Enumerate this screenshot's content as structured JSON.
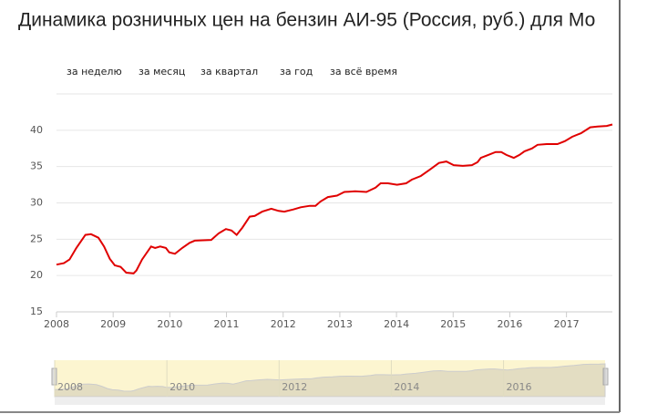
{
  "chart_data": {
    "type": "line",
    "title": "Динамика розничных цен на бензин АИ-95 (Россия, руб.) для Мо",
    "buttons": [
      "за неделю",
      "за месяц",
      "за квартал",
      "за год",
      "за всё время"
    ],
    "x": [
      2008.0,
      2008.13,
      2008.23,
      2008.35,
      2008.51,
      2008.61,
      2008.74,
      2008.84,
      2008.94,
      2009.03,
      2009.13,
      2009.23,
      2009.36,
      2009.41,
      2009.51,
      2009.67,
      2009.74,
      2009.83,
      2009.93,
      2009.99,
      2010.09,
      2010.22,
      2010.35,
      2010.44,
      2010.73,
      2010.86,
      2010.99,
      2011.09,
      2011.18,
      2011.28,
      2011.41,
      2011.5,
      2011.63,
      2011.79,
      2011.92,
      2012.02,
      2012.18,
      2012.31,
      2012.47,
      2012.57,
      2012.66,
      2012.79,
      2012.95,
      2013.08,
      2013.27,
      2013.47,
      2013.63,
      2013.72,
      2013.85,
      2014.01,
      2014.17,
      2014.27,
      2014.43,
      2014.59,
      2014.75,
      2014.88,
      2015.01,
      2015.17,
      2015.33,
      2015.43,
      2015.49,
      2015.62,
      2015.75,
      2015.85,
      2015.94,
      2016.07,
      2016.17,
      2016.26,
      2016.39,
      2016.49,
      2016.65,
      2016.84,
      2016.97,
      2017.1,
      2017.26,
      2017.42,
      2017.55,
      2017.71,
      2017.81
    ],
    "values": [
      21.5,
      21.7,
      22.2,
      23.8,
      25.6,
      25.7,
      25.2,
      24.0,
      22.3,
      21.4,
      21.2,
      20.4,
      20.3,
      20.7,
      22.2,
      24.0,
      23.8,
      24.0,
      23.8,
      23.2,
      23.0,
      23.8,
      24.5,
      24.8,
      24.9,
      25.8,
      26.4,
      26.2,
      25.6,
      26.6,
      28.1,
      28.2,
      28.8,
      29.2,
      28.9,
      28.8,
      29.1,
      29.4,
      29.6,
      29.6,
      30.2,
      30.8,
      31.0,
      31.5,
      31.6,
      31.5,
      32.1,
      32.7,
      32.7,
      32.5,
      32.7,
      33.2,
      33.7,
      34.6,
      35.5,
      35.7,
      35.2,
      35.1,
      35.2,
      35.6,
      36.2,
      36.6,
      37.0,
      37.0,
      36.6,
      36.2,
      36.6,
      37.1,
      37.5,
      38.0,
      38.1,
      38.1,
      38.5,
      39.1,
      39.6,
      40.4,
      40.5,
      40.6,
      40.8
    ],
    "color": "#e00000",
    "xlim": [
      2008,
      2017.81
    ],
    "xticks": [
      2008,
      2009,
      2010,
      2011,
      2012,
      2013,
      2014,
      2015,
      2016,
      2017
    ],
    "ylim": [
      15,
      45
    ],
    "yticks": [
      15,
      20,
      25,
      30,
      35,
      40
    ],
    "grid": true,
    "navigator": {
      "xticks": [
        2008,
        2010,
        2012,
        2014,
        2016
      ]
    }
  }
}
